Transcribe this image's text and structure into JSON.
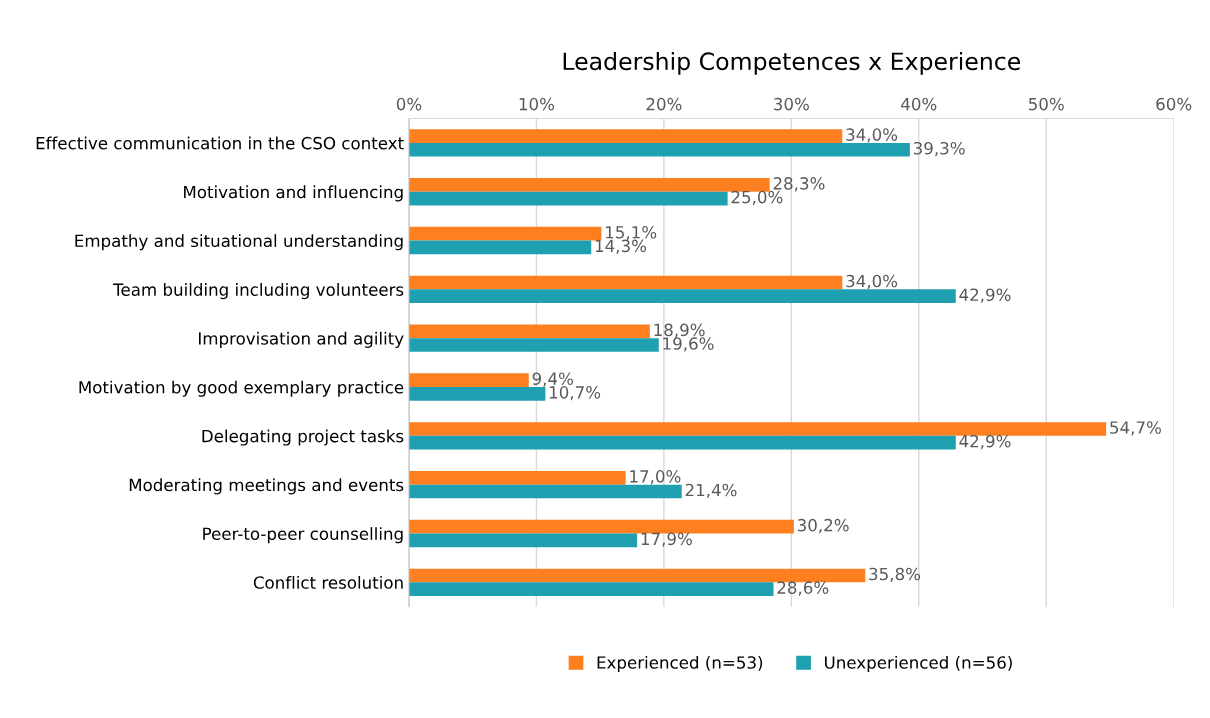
{
  "chart_data": {
    "type": "bar",
    "orientation": "horizontal",
    "title": "Leadership Competences x Experience",
    "categories": [
      "Effective communication in the CSO context",
      "Motivation and influencing",
      "Empathy and situational understanding",
      "Team building including volunteers",
      "Improvisation and agility",
      "Motivation by good exemplary practice",
      "Delegating project tasks",
      "Moderating meetings and events",
      "Peer-to-peer counselling",
      "Conflict resolution"
    ],
    "series": [
      {
        "name": "Experienced (n=53)",
        "color": "#fe7f1f",
        "values": [
          34.0,
          28.3,
          15.1,
          34.0,
          18.9,
          9.4,
          54.7,
          17.0,
          30.2,
          35.8
        ],
        "value_labels": [
          "34,0%",
          "28,3%",
          "15,1%",
          "34,0%",
          "18,9%",
          "9,4%",
          "54,7%",
          "17,0%",
          "30,2%",
          "35,8%"
        ]
      },
      {
        "name": "Unexperienced (n=56)",
        "color": "#1fa0b0",
        "values": [
          39.3,
          25.0,
          14.3,
          42.9,
          19.6,
          10.7,
          42.9,
          21.4,
          17.9,
          28.6
        ],
        "value_labels": [
          "39,3%",
          "25,0%",
          "14,3%",
          "42,9%",
          "19,6%",
          "10,7%",
          "42,9%",
          "21,4%",
          "17,9%",
          "28,6%"
        ]
      }
    ],
    "xlim": [
      0,
      60
    ],
    "xticks": [
      {
        "value": 0,
        "label": "0%"
      },
      {
        "value": 10,
        "label": "10%"
      },
      {
        "value": 20,
        "label": "20%"
      },
      {
        "value": 30,
        "label": "30%"
      },
      {
        "value": 40,
        "label": "40%"
      },
      {
        "value": 50,
        "label": "50%"
      },
      {
        "value": 60,
        "label": "60%"
      }
    ],
    "grid": "x",
    "legend": "bottom"
  }
}
